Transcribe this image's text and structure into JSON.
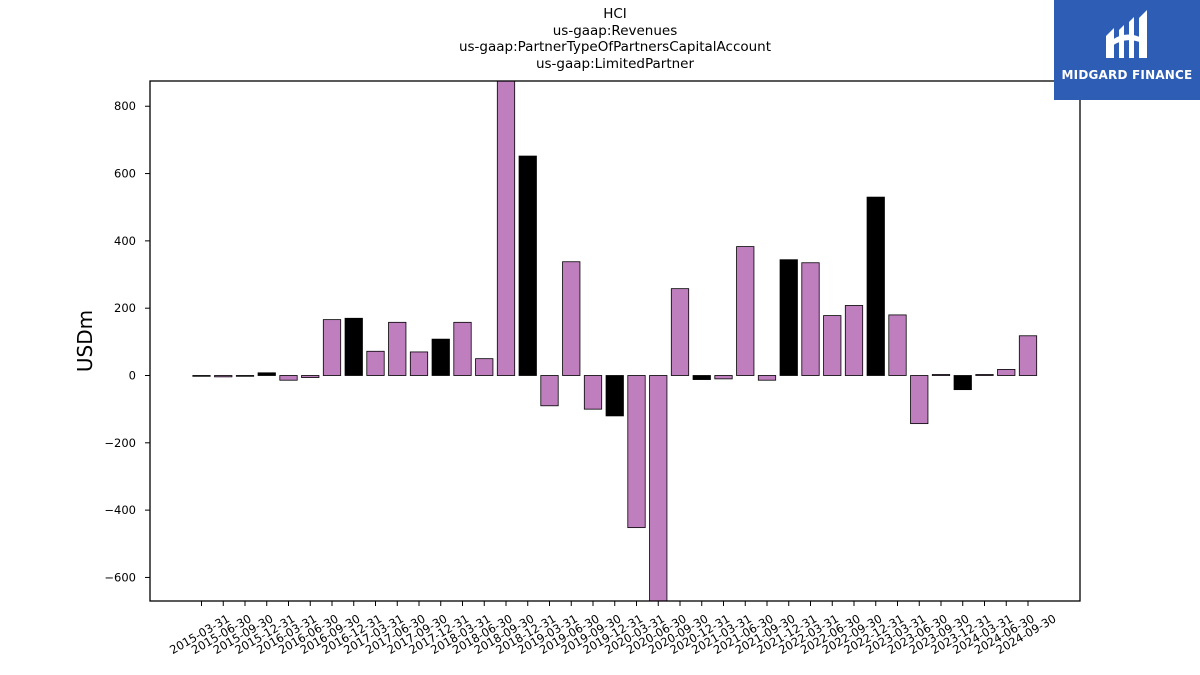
{
  "title_lines": [
    "HCI",
    "us-gaap:Revenues",
    "us-gaap:PartnerTypeOfPartnersCapitalAccount",
    "us-gaap:LimitedPartner"
  ],
  "logo": {
    "text": "MIDGARD FINANCE",
    "background": "#2d5db5"
  },
  "colors": {
    "primary_bar": "#bf7fbf",
    "highlight_bar": "#000000",
    "edge": "#000000"
  },
  "chart_data": {
    "type": "bar",
    "ylabel": "USDm",
    "xlabel": "",
    "ylim": [
      -670,
      875
    ],
    "yticks": [
      -600,
      -400,
      -200,
      0,
      200,
      400,
      600,
      800
    ],
    "grid": false,
    "categories": [
      "2015-03-31",
      "2015-06-30",
      "2015-09-30",
      "2015-12-31",
      "2016-03-31",
      "2016-06-30",
      "2016-09-30",
      "2016-12-31",
      "2017-03-31",
      "2017-06-30",
      "2017-09-30",
      "2017-12-31",
      "2018-03-31",
      "2018-06-30",
      "2018-09-30",
      "2018-12-31",
      "2019-03-31",
      "2019-06-30",
      "2019-09-30",
      "2019-12-31",
      "2020-03-31",
      "2020-06-30",
      "2020-09-30",
      "2020-12-31",
      "2021-03-31",
      "2021-06-30",
      "2021-09-30",
      "2021-12-31",
      "2022-03-31",
      "2022-06-30",
      "2022-09-30",
      "2022-12-31",
      "2023-03-31",
      "2023-06-30",
      "2023-09-30",
      "2023-12-31",
      "2024-03-31",
      "2024-06-30",
      "2024-09-30"
    ],
    "values": [
      -2,
      -4,
      0,
      8,
      -14,
      -6,
      166,
      170,
      72,
      158,
      70,
      108,
      158,
      50,
      880,
      652,
      -90,
      338,
      -100,
      -120,
      -452,
      -680,
      258,
      -12,
      -10,
      383,
      -14,
      344,
      335,
      178,
      208,
      530,
      180,
      -143,
      3,
      -42,
      3,
      18,
      118
    ],
    "highlight": [
      false,
      false,
      false,
      true,
      false,
      false,
      false,
      true,
      false,
      false,
      false,
      true,
      false,
      false,
      false,
      true,
      false,
      false,
      false,
      true,
      false,
      false,
      false,
      true,
      false,
      false,
      false,
      true,
      false,
      false,
      false,
      true,
      false,
      false,
      false,
      true,
      false,
      false,
      false
    ]
  }
}
